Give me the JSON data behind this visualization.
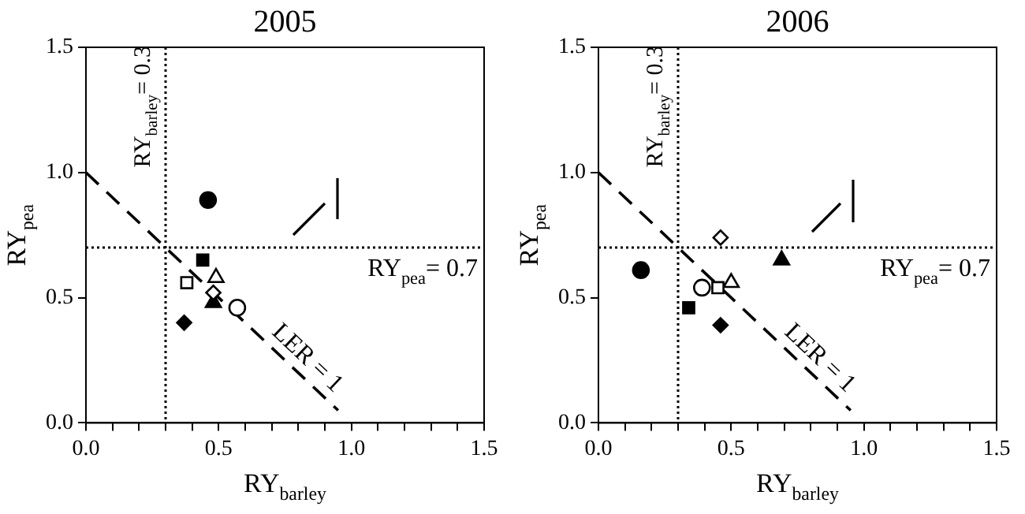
{
  "chart_data": [
    {
      "type": "scatter",
      "title": "2005",
      "xlabel": "RY$_{barley}$",
      "ylabel": "RY$_{pea}$",
      "xlim": [
        0,
        1.5
      ],
      "ylim": [
        0,
        1.5
      ],
      "xticks": [
        {
          "value": 0,
          "label": "0.0"
        },
        {
          "value": 0.1,
          "label": null
        },
        {
          "value": 0.2,
          "label": null
        },
        {
          "value": 0.3,
          "label": null
        },
        {
          "value": 0.4,
          "label": null
        },
        {
          "value": 0.5,
          "label": "0.5"
        },
        {
          "value": 0.6,
          "label": null
        },
        {
          "value": 0.7,
          "label": null
        },
        {
          "value": 0.8,
          "label": null
        },
        {
          "value": 0.9,
          "label": null
        },
        {
          "value": 1,
          "label": "1.0"
        },
        {
          "value": 1.1,
          "label": null
        },
        {
          "value": 1.2,
          "label": null
        },
        {
          "value": 1.3,
          "label": null
        },
        {
          "value": 1.4,
          "label": null
        },
        {
          "value": 1.5,
          "label": "1.5"
        }
      ],
      "yticks": [
        {
          "value": 0,
          "label": "0.0"
        },
        {
          "value": 0.5,
          "label": "0.5"
        },
        {
          "value": 1,
          "label": "1.0"
        },
        {
          "value": 1.5,
          "label": "1.5"
        }
      ],
      "series": [
        {
          "color": "#000000",
          "marker": "circle",
          "x": [
            0.46
          ],
          "values": [
            0.89
          ]
        },
        {
          "color": "#000000",
          "marker": "square",
          "x": [
            0.44
          ],
          "values": [
            0.65
          ]
        },
        {
          "color": "#ffffff",
          "marker": "square",
          "x": [
            0.38
          ],
          "values": [
            0.56
          ]
        },
        {
          "color": "#ffffff",
          "marker": "triangle",
          "x": [
            0.49
          ],
          "values": [
            0.58
          ]
        },
        {
          "color": "#ffffff",
          "marker": "diamond",
          "x": [
            0.48
          ],
          "values": [
            0.52
          ]
        },
        {
          "color": "#000000",
          "marker": "triangle",
          "x": [
            0.48
          ],
          "values": [
            0.48
          ]
        },
        {
          "color": "#ffffff",
          "marker": "circle",
          "x": [
            0.57
          ],
          "values": [
            0.46
          ]
        },
        {
          "color": "#000000",
          "marker": "diamond",
          "x": [
            0.37
          ],
          "values": [
            0.4
          ]
        },
        {
          "type": "line",
          "color": "#000000",
          "line_style": "dashed",
          "marker": "none",
          "x": [
            0,
            0.95
          ],
          "values": [
            1,
            0.05
          ]
        }
      ],
      "ref_lines": [
        {
          "axis": "x",
          "value": 0.3,
          "label": "RY$_{barley}$= 0.3",
          "line_style": "dotted",
          "color": "#000000"
        },
        {
          "axis": "y",
          "value": 0.7,
          "label": "RY$_{pea}$= 0.7",
          "line_style": "dotted",
          "color": "#000000"
        }
      ],
      "annotations": [
        {
          "text": "LER = 1",
          "x": 0.8,
          "y": 0.22
        }
      ]
    },
    {
      "type": "scatter",
      "title": "2006",
      "xlabel": "RY$_{barley}$",
      "ylabel": "RY$_{pea}$",
      "xlim": [
        0,
        1.5
      ],
      "ylim": [
        0,
        1.5
      ],
      "xticks": [
        {
          "value": 0,
          "label": "0.0"
        },
        {
          "value": 0.1,
          "label": null
        },
        {
          "value": 0.2,
          "label": null
        },
        {
          "value": 0.3,
          "label": null
        },
        {
          "value": 0.4,
          "label": null
        },
        {
          "value": 0.5,
          "label": "0.5"
        },
        {
          "value": 0.6,
          "label": null
        },
        {
          "value": 0.7,
          "label": null
        },
        {
          "value": 0.8,
          "label": null
        },
        {
          "value": 0.9,
          "label": null
        },
        {
          "value": 1,
          "label": "1.0"
        },
        {
          "value": 1.1,
          "label": null
        },
        {
          "value": 1.2,
          "label": null
        },
        {
          "value": 1.3,
          "label": null
        },
        {
          "value": 1.4,
          "label": null
        },
        {
          "value": 1.5,
          "label": "1.5"
        }
      ],
      "yticks": [
        {
          "value": 0,
          "label": "0.0"
        },
        {
          "value": 0.5,
          "label": "0.5"
        },
        {
          "value": 1,
          "label": "1.0"
        },
        {
          "value": 1.5,
          "label": "1.5"
        }
      ],
      "series": [
        {
          "color": "#000000",
          "marker": "circle",
          "x": [
            0.16
          ],
          "values": [
            0.61
          ]
        },
        {
          "color": "#ffffff",
          "marker": "circle",
          "x": [
            0.39
          ],
          "values": [
            0.54
          ]
        },
        {
          "color": "#ffffff",
          "marker": "square",
          "x": [
            0.45
          ],
          "values": [
            0.54
          ]
        },
        {
          "color": "#ffffff",
          "marker": "triangle",
          "x": [
            0.5
          ],
          "values": [
            0.56
          ]
        },
        {
          "color": "#ffffff",
          "marker": "diamond",
          "x": [
            0.46
          ],
          "values": [
            0.74
          ]
        },
        {
          "color": "#000000",
          "marker": "triangle",
          "x": [
            0.69
          ],
          "values": [
            0.65
          ]
        },
        {
          "color": "#000000",
          "marker": "square",
          "x": [
            0.34
          ],
          "values": [
            0.46
          ]
        },
        {
          "color": "#000000",
          "marker": "diamond",
          "x": [
            0.46
          ],
          "values": [
            0.39
          ]
        },
        {
          "type": "line",
          "color": "#000000",
          "line_style": "dashed",
          "marker": "none",
          "x": [
            0,
            0.95
          ],
          "values": [
            1,
            0.05
          ]
        }
      ],
      "ref_lines": [
        {
          "axis": "x",
          "value": 0.3,
          "label": "RY$_{barley}$= 0.3",
          "line_style": "dotted",
          "color": "#000000"
        },
        {
          "axis": "y",
          "value": 0.7,
          "label": "RY$_{pea}$= 0.7",
          "line_style": "dotted",
          "color": "#000000"
        }
      ],
      "annotations": [
        {
          "text": "LER = 1",
          "x": 0.8,
          "y": 0.22
        }
      ]
    }
  ]
}
